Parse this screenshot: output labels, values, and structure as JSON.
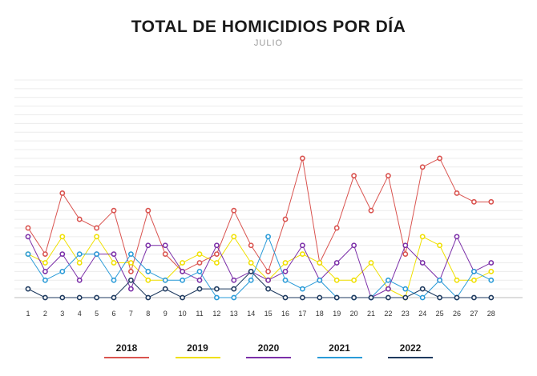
{
  "chart_data": {
    "type": "line",
    "title": "TOTAL DE HOMICIDIOS POR DÍA",
    "subtitle": "JULIO",
    "x": [
      1,
      2,
      3,
      4,
      5,
      6,
      7,
      8,
      9,
      10,
      11,
      12,
      13,
      14,
      15,
      16,
      17,
      18,
      19,
      20,
      21,
      22,
      23,
      24,
      25,
      26,
      27,
      28
    ],
    "ylim": [
      0,
      25
    ],
    "grid": true,
    "legend_position": "bottom",
    "series": [
      {
        "name": "2018",
        "color": "#d9534f",
        "values": [
          8,
          5,
          12,
          9,
          8,
          10,
          3,
          10,
          5,
          3,
          4,
          5,
          10,
          6,
          3,
          9,
          16,
          4,
          8,
          14,
          10,
          14,
          5,
          15,
          16,
          12,
          11,
          11
        ]
      },
      {
        "name": "2019",
        "color": "#f0e000",
        "values": [
          5,
          4,
          7,
          4,
          7,
          4,
          4,
          2,
          2,
          4,
          5,
          4,
          7,
          4,
          2,
          4,
          5,
          4,
          2,
          2,
          4,
          1,
          0,
          7,
          6,
          2,
          2,
          3
        ]
      },
      {
        "name": "2020",
        "color": "#7b2fa8",
        "values": [
          7,
          3,
          5,
          2,
          5,
          5,
          1,
          6,
          6,
          3,
          2,
          6,
          2,
          3,
          2,
          3,
          6,
          2,
          4,
          6,
          0,
          1,
          6,
          4,
          2,
          7,
          3,
          4
        ]
      },
      {
        "name": "2021",
        "color": "#2a9bd8",
        "values": [
          5,
          2,
          3,
          5,
          5,
          2,
          5,
          3,
          2,
          2,
          3,
          0,
          0,
          2,
          7,
          2,
          1,
          2,
          0,
          0,
          0,
          2,
          1,
          0,
          2,
          0,
          3,
          2
        ]
      },
      {
        "name": "2022",
        "color": "#1e3a5f",
        "values": [
          1,
          0,
          0,
          0,
          0,
          0,
          2,
          0,
          1,
          0,
          1,
          1,
          1,
          3,
          1,
          0,
          0,
          0,
          0,
          0,
          0,
          0,
          0,
          1,
          0,
          0,
          0,
          0
        ]
      }
    ]
  }
}
